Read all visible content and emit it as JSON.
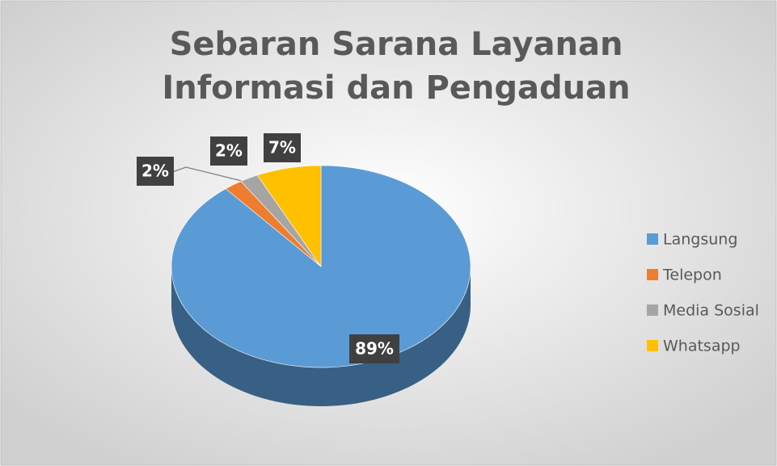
{
  "chart_data": {
    "type": "pie",
    "title": "Sebaran Sarana Layanan Informasi dan Pengaduan",
    "categories": [
      "Langsung",
      "Telepon",
      "Media Sosial",
      "Whatsapp"
    ],
    "values": [
      89,
      2,
      2,
      7
    ],
    "value_labels": [
      "89%",
      "2%",
      "2%",
      "7%"
    ],
    "colors": [
      "#5b9bd5",
      "#ed7d31",
      "#a5a5a5",
      "#ffc000"
    ],
    "legend": "right"
  }
}
